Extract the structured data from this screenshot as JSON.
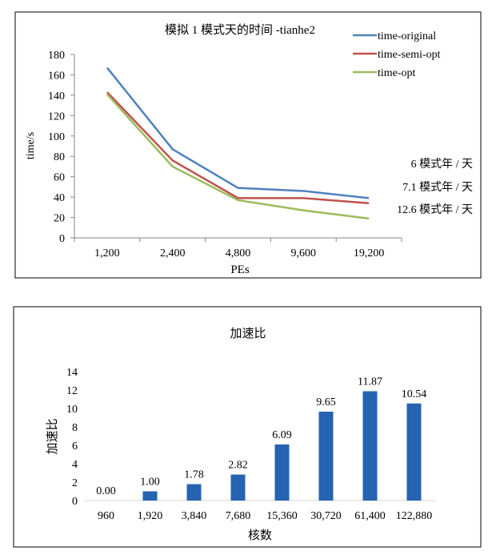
{
  "chart_data": [
    {
      "type": "line",
      "title": "模拟 1 模式天的时间 -tianhe2",
      "xlabel": "PEs",
      "ylabel": "time/s",
      "categories": [
        "1,200",
        "2,400",
        "4,800",
        "9,600",
        "19,200"
      ],
      "ylim": [
        0,
        180
      ],
      "yticks": [
        "0",
        "20",
        "40",
        "60",
        "80",
        "100",
        "120",
        "140",
        "160",
        "180"
      ],
      "grid": false,
      "legend": "top-right",
      "series": [
        {
          "name": "time-original",
          "color": "#4f81bd",
          "values": [
            167,
            87,
            49,
            46,
            39
          ]
        },
        {
          "name": "time-semi-opt",
          "color": "#c0504d",
          "values": [
            143,
            76,
            39,
            39,
            34
          ]
        },
        {
          "name": "time-opt",
          "color": "#9bbb59",
          "values": [
            141,
            70,
            37,
            27,
            19
          ]
        }
      ],
      "annotations": [
        "6 模式年 / 天",
        "7.1 模式年 / 天",
        "12.6 模式年 / 天"
      ]
    },
    {
      "type": "bar",
      "title": "加速比",
      "xlabel": "核数",
      "ylabel": "加速比",
      "categories": [
        "960",
        "1,920",
        "3,840",
        "7,680",
        "15,360",
        "30,720",
        "61,400",
        "122,880"
      ],
      "values": [
        0.0,
        1.0,
        1.78,
        2.82,
        6.09,
        9.65,
        11.87,
        10.54
      ],
      "value_labels": [
        "0.00",
        "1.00",
        "1.78",
        "2.82",
        "6.09",
        "9.65",
        "11.87",
        "10.54"
      ],
      "ylim": [
        0,
        14
      ],
      "yticks": [
        "0",
        "2",
        "4",
        "6",
        "8",
        "10",
        "12",
        "14"
      ],
      "grid": false,
      "color": "#2563b0"
    }
  ]
}
